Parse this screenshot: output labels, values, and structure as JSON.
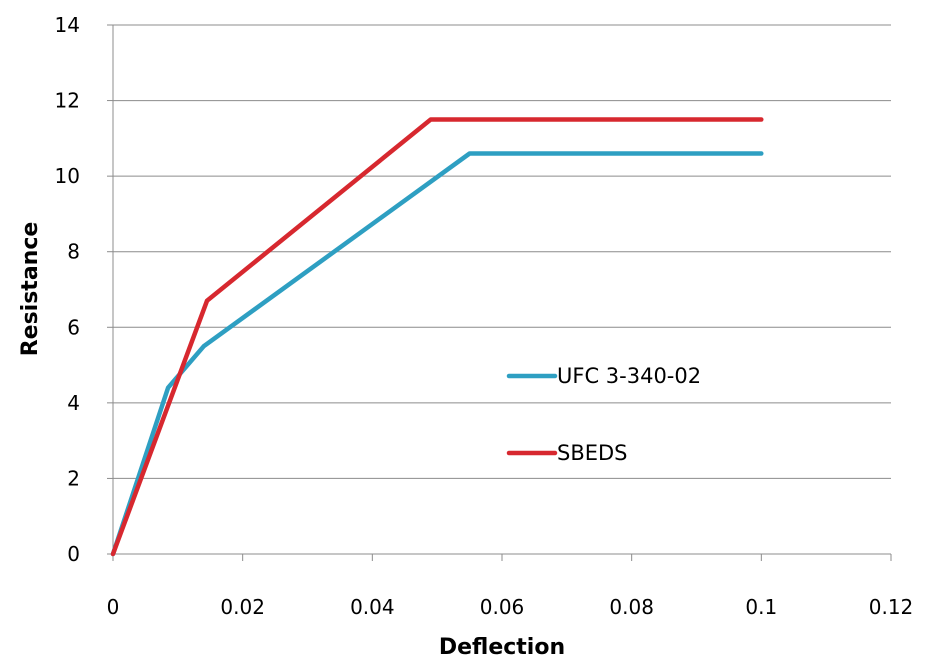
{
  "chart_data": {
    "type": "line",
    "title": "",
    "xlabel": "Deflection",
    "ylabel": "Resistance",
    "xlim": [
      0,
      0.12
    ],
    "ylim": [
      0,
      14
    ],
    "x_ticks": [
      0,
      0.02,
      0.04,
      0.06,
      0.08,
      0.1,
      0.12
    ],
    "x_tick_labels": [
      "0",
      "0.02",
      "0.04",
      "0.06",
      "0.08",
      "0.1",
      "0.12"
    ],
    "y_ticks": [
      0,
      2,
      4,
      6,
      8,
      10,
      12,
      14
    ],
    "y_tick_labels": [
      "0",
      "2",
      "4",
      "6",
      "8",
      "10",
      "12",
      "14"
    ],
    "grid": "horizontal",
    "legend_position": "inside-right",
    "series": [
      {
        "name": "UFC 3-340-02",
        "color": "#2e9fc2",
        "x": [
          0,
          0.0085,
          0.014,
          0.055,
          0.1
        ],
        "y": [
          0,
          4.4,
          5.5,
          10.6,
          10.6
        ]
      },
      {
        "name": "SBEDS",
        "color": "#d7282f",
        "x": [
          0,
          0.0145,
          0.049,
          0.1
        ],
        "y": [
          0,
          6.7,
          11.5,
          11.5
        ]
      }
    ]
  }
}
